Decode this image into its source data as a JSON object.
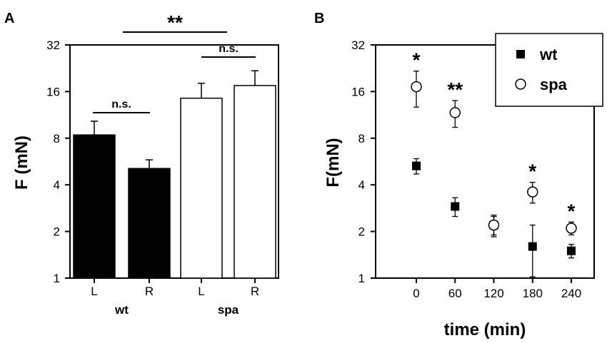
{
  "chart_data": [
    {
      "panel": "A",
      "type": "bar",
      "ylabel": "F (mN)",
      "y_scale": "log2",
      "ylim": [
        1,
        32
      ],
      "yticks": [
        "1",
        "2",
        "4",
        "8",
        "16",
        "32"
      ],
      "categories": [
        "L",
        "R",
        "L",
        "R"
      ],
      "groups": [
        {
          "label": "wt",
          "members": [
            0,
            1
          ]
        },
        {
          "label": "spa",
          "members": [
            2,
            3
          ]
        }
      ],
      "values": [
        8.4,
        5.1,
        14.5,
        17.5
      ],
      "errors": [
        1.9,
        0.7,
        3.6,
        4.3
      ],
      "fills": [
        "#000000",
        "#000000",
        "#ffffff",
        "#ffffff"
      ],
      "annotations": [
        {
          "text": "n.s.",
          "between": [
            0,
            1
          ]
        },
        {
          "text": "n.s.",
          "between": [
            2,
            3
          ]
        },
        {
          "text": "**",
          "between": [
            0.5,
            2.5
          ]
        }
      ]
    },
    {
      "panel": "B",
      "type": "scatter",
      "xlabel": "time (min)",
      "ylabel": "F(mN)",
      "y_scale": "log2",
      "ylim": [
        1,
        32
      ],
      "yticks": [
        "1",
        "2",
        "4",
        "8",
        "16",
        "32"
      ],
      "xticks": [
        0,
        60,
        120,
        180,
        240
      ],
      "series": [
        {
          "name": "wt",
          "marker": "filled-square",
          "x": [
            0,
            60,
            120,
            180,
            240
          ],
          "y": [
            5.3,
            2.9,
            2.2,
            1.6,
            1.5
          ],
          "err": [
            0.6,
            0.4,
            0.35,
            0.6,
            0.15
          ]
        },
        {
          "name": "spa",
          "marker": "open-circle",
          "x": [
            0,
            60,
            120,
            180,
            240
          ],
          "y": [
            17.2,
            11.7,
            2.2,
            3.6,
            2.1
          ],
          "err": [
            4.5,
            2.3,
            0.3,
            0.55,
            0.2
          ]
        }
      ],
      "significance": [
        {
          "x": 0,
          "text": "*"
        },
        {
          "x": 60,
          "text": "**"
        },
        {
          "x": 180,
          "text": "*"
        },
        {
          "x": 240,
          "text": "*"
        }
      ],
      "legend_position": "top-right"
    }
  ]
}
